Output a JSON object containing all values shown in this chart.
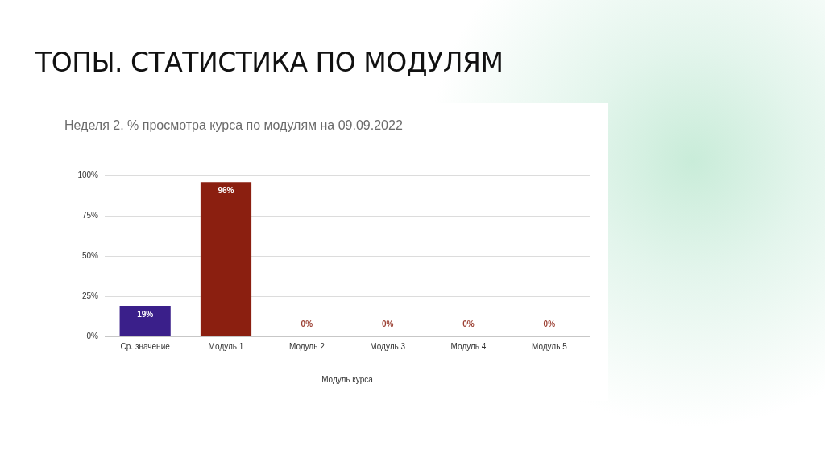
{
  "chart_data": {
    "type": "bar",
    "title": "ТОПЫ. СТАТИСТИКА ПО МОДУЛЯМ",
    "subtitle": "Неделя 2. % просмотра курса по модулям на 09.09.2022",
    "xlabel": "Модуль курса",
    "categories": [
      "Ср. значение",
      "Модуль 1",
      "Модуль 2",
      "Модуль 3",
      "Модуль 4",
      "Модуль 5"
    ],
    "values": [
      19,
      96,
      0,
      0,
      0,
      0
    ],
    "colors": [
      "#3a1f8a",
      "#8b1f10",
      "#8b1f10",
      "#8b1f10",
      "#8b1f10",
      "#8b1f10"
    ],
    "value_labels": [
      "19%",
      "96%",
      "0%",
      "0%",
      "0%",
      "0%"
    ],
    "ylim": [
      0,
      100
    ],
    "yticks": [
      {
        "value": 0,
        "label": "0%"
      },
      {
        "value": 25,
        "label": "25%"
      },
      {
        "value": 50,
        "label": "50%"
      },
      {
        "value": 75,
        "label": "75%"
      },
      {
        "value": 100,
        "label": "100%"
      }
    ],
    "grid": "y",
    "legend": false
  }
}
